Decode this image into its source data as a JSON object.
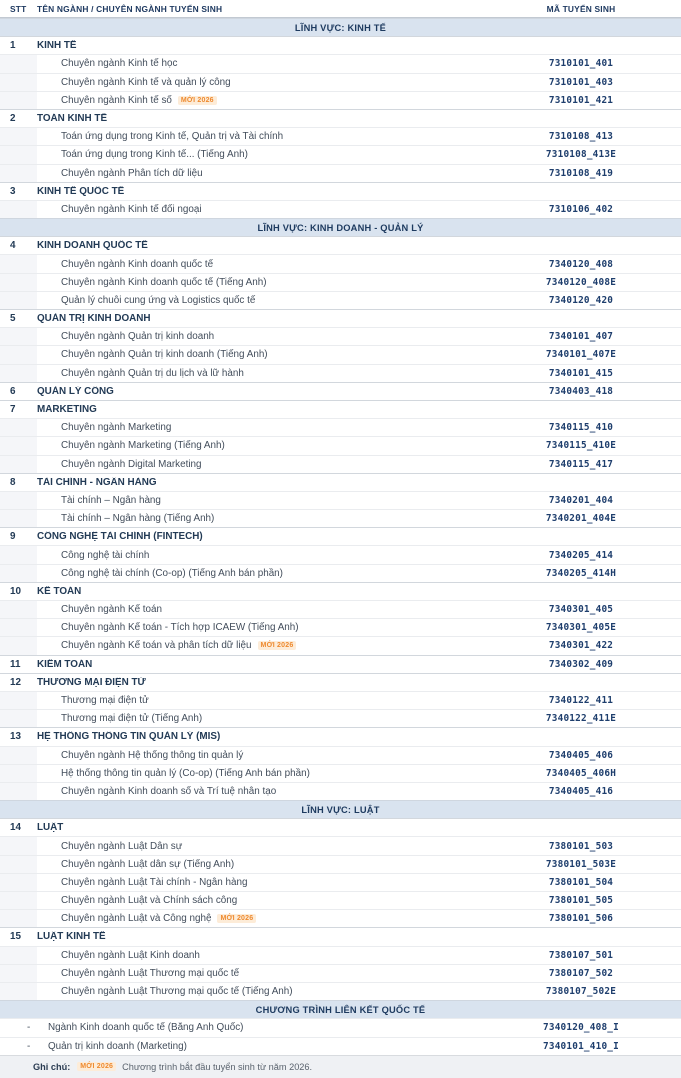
{
  "badge_label": "MỚI 2026",
  "colors": {
    "header_text": "#1f3a61",
    "section_bg": "#d9e3ef",
    "section_text": "#1d3a5f",
    "major_text": "#223a55",
    "sub_text": "#424d5b",
    "code_text": "#1e3e6d",
    "badge_text": "#ee8a2f",
    "badge_bg": "#fdecd8",
    "footer_bg": "#eff1f4"
  },
  "header": {
    "stt": "STT",
    "name": "TÊN NGÀNH / CHUYÊN NGÀNH TUYỂN SINH",
    "code": "MÃ TUYỂN SINH"
  },
  "rows": [
    {
      "type": "section",
      "name": "LĨNH VỰC: KINH TẾ"
    },
    {
      "type": "major",
      "stt": "1",
      "name": "KINH TẾ",
      "code": ""
    },
    {
      "type": "sub",
      "name": "Chuyên ngành Kinh tế học",
      "code": "7310101_401"
    },
    {
      "type": "sub",
      "name": "Chuyên ngành Kinh tế và quản lý công",
      "code": "7310101_403"
    },
    {
      "type": "sub",
      "name": "Chuyên ngành Kinh tế số",
      "badge": true,
      "code": "7310101_421"
    },
    {
      "type": "major",
      "stt": "2",
      "name": "TOÁN KINH TẾ",
      "code": ""
    },
    {
      "type": "sub",
      "name": "Toán ứng dụng trong Kinh tế, Quản trị và Tài chính",
      "code": "7310108_413"
    },
    {
      "type": "sub",
      "name": "Toán ứng dụng trong Kinh tế... (Tiếng Anh)",
      "code": "7310108_413E"
    },
    {
      "type": "sub",
      "name": "Chuyên ngành Phân tích dữ liệu",
      "code": "7310108_419"
    },
    {
      "type": "major",
      "stt": "3",
      "name": "KINH TẾ QUỐC TẾ",
      "code": ""
    },
    {
      "type": "sub",
      "name": "Chuyên ngành Kinh tế đối ngoại",
      "code": "7310106_402"
    },
    {
      "type": "section",
      "name": "LĨNH VỰC: KINH DOANH - QUẢN LÝ"
    },
    {
      "type": "major",
      "stt": "4",
      "name": "KINH DOANH QUỐC TẾ",
      "code": ""
    },
    {
      "type": "sub",
      "name": "Chuyên ngành Kinh doanh quốc tế",
      "code": "7340120_408"
    },
    {
      "type": "sub",
      "name": "Chuyên ngành Kinh doanh quốc tế (Tiếng Anh)",
      "code": "7340120_408E"
    },
    {
      "type": "sub",
      "name": "Quản lý chuỗi cung ứng và Logistics quốc tế",
      "code": "7340120_420"
    },
    {
      "type": "major",
      "stt": "5",
      "name": "QUẢN TRỊ KINH DOANH",
      "code": ""
    },
    {
      "type": "sub",
      "name": "Chuyên ngành Quản trị kinh doanh",
      "code": "7340101_407"
    },
    {
      "type": "sub",
      "name": "Chuyên ngành Quản trị kinh doanh (Tiếng Anh)",
      "code": "7340101_407E"
    },
    {
      "type": "sub",
      "name": "Chuyên ngành Quản trị du lịch và lữ hành",
      "code": "7340101_415"
    },
    {
      "type": "major",
      "stt": "6",
      "name": "QUẢN LÝ CÔNG",
      "code": "7340403_418"
    },
    {
      "type": "major",
      "stt": "7",
      "name": "MARKETING",
      "code": ""
    },
    {
      "type": "sub",
      "name": "Chuyên ngành Marketing",
      "code": "7340115_410"
    },
    {
      "type": "sub",
      "name": "Chuyên ngành Marketing (Tiếng Anh)",
      "code": "7340115_410E"
    },
    {
      "type": "sub",
      "name": "Chuyên ngành Digital Marketing",
      "code": "7340115_417"
    },
    {
      "type": "major",
      "stt": "8",
      "name": "TÀI CHÍNH - NGÂN HÀNG",
      "code": ""
    },
    {
      "type": "sub",
      "name": "Tài chính – Ngân hàng",
      "code": "7340201_404"
    },
    {
      "type": "sub",
      "name": "Tài chính – Ngân hàng (Tiếng Anh)",
      "code": "7340201_404E"
    },
    {
      "type": "major",
      "stt": "9",
      "name": "CÔNG NGHỆ TÀI CHÍNH (FINTECH)",
      "code": ""
    },
    {
      "type": "sub",
      "name": "Công nghệ tài chính",
      "code": "7340205_414"
    },
    {
      "type": "sub",
      "name": "Công nghệ tài chính (Co-op) (Tiếng Anh bán phần)",
      "code": "7340205_414H"
    },
    {
      "type": "major",
      "stt": "10",
      "name": "KẾ TOÁN",
      "code": ""
    },
    {
      "type": "sub",
      "name": "Chuyên ngành Kế toán",
      "code": "7340301_405"
    },
    {
      "type": "sub",
      "name": "Chuyên ngành Kế toán - Tích hợp ICAEW (Tiếng Anh)",
      "code": "7340301_405E"
    },
    {
      "type": "sub",
      "name": "Chuyên ngành Kế toán và phân tích dữ liệu",
      "badge": true,
      "code": "7340301_422"
    },
    {
      "type": "major",
      "stt": "11",
      "name": "KIỂM TOÁN",
      "code": "7340302_409"
    },
    {
      "type": "major",
      "stt": "12",
      "name": "THƯƠNG MẠI ĐIỆN TỬ",
      "code": ""
    },
    {
      "type": "sub",
      "name": "Thương mại điện tử",
      "code": "7340122_411"
    },
    {
      "type": "sub",
      "name": "Thương mại điện tử (Tiếng Anh)",
      "code": "7340122_411E"
    },
    {
      "type": "major",
      "stt": "13",
      "name": "HỆ THỐNG THÔNG TIN QUẢN LÝ (MIS)",
      "code": ""
    },
    {
      "type": "sub",
      "name": "Chuyên ngành Hệ thống thông tin quản lý",
      "code": "7340405_406"
    },
    {
      "type": "sub",
      "name": "Hệ thống thông tin quản lý (Co-op) (Tiếng Anh bán phần)",
      "code": "7340405_406H"
    },
    {
      "type": "sub",
      "name": "Chuyên ngành Kinh doanh số và Trí tuệ nhân tạo",
      "code": "7340405_416"
    },
    {
      "type": "section",
      "name": "LĨNH VỰC: LUẬT"
    },
    {
      "type": "major",
      "stt": "14",
      "name": "LUẬT",
      "code": ""
    },
    {
      "type": "sub",
      "name": "Chuyên ngành Luật Dân sự",
      "code": "7380101_503"
    },
    {
      "type": "sub",
      "name": "Chuyên ngành Luật dân sự (Tiếng Anh)",
      "code": "7380101_503E"
    },
    {
      "type": "sub",
      "name": "Chuyên ngành Luật Tài chính - Ngân hàng",
      "code": "7380101_504"
    },
    {
      "type": "sub",
      "name": "Chuyên ngành Luật và Chính sách công",
      "code": "7380101_505"
    },
    {
      "type": "sub",
      "name": "Chuyên ngành Luật và Công nghệ",
      "badge": true,
      "code": "7380101_506"
    },
    {
      "type": "major",
      "stt": "15",
      "name": "LUẬT KINH TẾ",
      "code": ""
    },
    {
      "type": "sub",
      "name": "Chuyên ngành Luật Kinh doanh",
      "code": "7380107_501"
    },
    {
      "type": "sub",
      "name": "Chuyên ngành Luật Thương mại quốc tế",
      "code": "7380107_502"
    },
    {
      "type": "sub",
      "name": "Chuyên ngành Luật Thương mại quốc tế (Tiếng Anh)",
      "code": "7380107_502E"
    },
    {
      "type": "section",
      "name": "CHƯƠNG TRÌNH LIÊN KẾT QUỐC TẾ"
    },
    {
      "type": "intl",
      "stt": "-",
      "name": "Ngành Kinh doanh quốc tế (Bằng Anh Quốc)",
      "code": "7340120_408_I"
    },
    {
      "type": "intl",
      "stt": "-",
      "name": "Quản trị kinh doanh (Marketing)",
      "code": "7340101_410_I"
    }
  ],
  "footer": {
    "label": "Ghi chú:",
    "badge": "MỚI 2026",
    "text": "Chương trình bắt đầu tuyển sinh từ năm 2026."
  }
}
